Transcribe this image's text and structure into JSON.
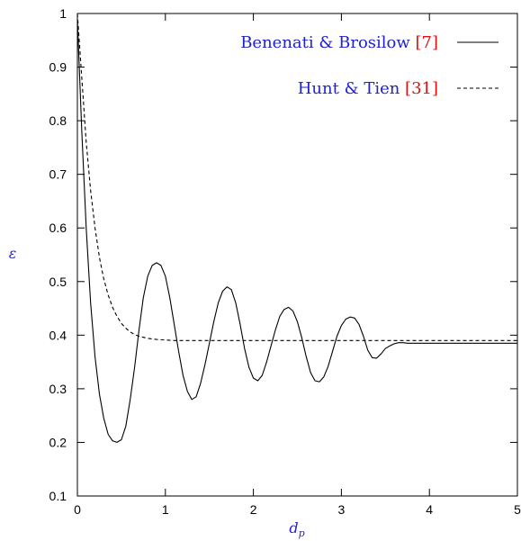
{
  "colors": {
    "axis_label": "#2222cc",
    "legend_text": "#2222cc",
    "citation": "#dd1111",
    "line": "#000000"
  },
  "chart_data": {
    "type": "line",
    "title": "",
    "xlabel": "d_p",
    "ylabel": "ε",
    "xlim": [
      0,
      5
    ],
    "ylim": [
      0.1,
      1
    ],
    "xticks": [
      "0",
      "1",
      "2",
      "3",
      "4",
      "5"
    ],
    "yticks": [
      "0.1",
      "0.2",
      "0.3",
      "0.4",
      "0.5",
      "0.6",
      "0.7",
      "0.8",
      "0.9",
      "1"
    ],
    "grid": false,
    "legend_position": "top-right",
    "series": [
      {
        "name": "Benenati & Brosilow",
        "citation": "[7]",
        "style": "solid",
        "x": [
          0,
          0.05,
          0.1,
          0.15,
          0.2,
          0.25,
          0.3,
          0.35,
          0.4,
          0.45,
          0.5,
          0.55,
          0.6,
          0.65,
          0.7,
          0.75,
          0.8,
          0.85,
          0.9,
          0.95,
          1.0,
          1.05,
          1.1,
          1.15,
          1.2,
          1.25,
          1.3,
          1.35,
          1.4,
          1.45,
          1.5,
          1.55,
          1.6,
          1.65,
          1.7,
          1.75,
          1.8,
          1.85,
          1.9,
          1.95,
          2.0,
          2.05,
          2.1,
          2.15,
          2.2,
          2.25,
          2.3,
          2.35,
          2.4,
          2.45,
          2.5,
          2.55,
          2.6,
          2.65,
          2.7,
          2.75,
          2.8,
          2.85,
          2.9,
          2.95,
          3.0,
          3.05,
          3.1,
          3.15,
          3.2,
          3.25,
          3.3,
          3.35,
          3.4,
          3.45,
          3.5,
          3.55,
          3.6,
          3.65,
          3.7,
          3.75,
          3.8,
          3.9,
          4.0,
          4.1,
          4.2,
          4.3,
          4.4,
          4.5,
          4.6,
          4.7,
          4.8,
          4.9,
          5.0
        ],
        "y": [
          0.99,
          0.78,
          0.6,
          0.46,
          0.36,
          0.29,
          0.245,
          0.215,
          0.203,
          0.2,
          0.205,
          0.23,
          0.28,
          0.34,
          0.41,
          0.47,
          0.51,
          0.53,
          0.535,
          0.53,
          0.51,
          0.47,
          0.42,
          0.37,
          0.325,
          0.295,
          0.28,
          0.285,
          0.31,
          0.345,
          0.385,
          0.425,
          0.46,
          0.482,
          0.49,
          0.485,
          0.46,
          0.42,
          0.375,
          0.34,
          0.32,
          0.315,
          0.325,
          0.35,
          0.38,
          0.41,
          0.435,
          0.448,
          0.452,
          0.445,
          0.425,
          0.395,
          0.36,
          0.33,
          0.315,
          0.313,
          0.322,
          0.342,
          0.37,
          0.398,
          0.418,
          0.43,
          0.434,
          0.432,
          0.42,
          0.398,
          0.372,
          0.358,
          0.357,
          0.365,
          0.375,
          0.38,
          0.384,
          0.386,
          0.386,
          0.385,
          0.385,
          0.385,
          0.385,
          0.385,
          0.385,
          0.385,
          0.385,
          0.385,
          0.385,
          0.385,
          0.385,
          0.385,
          0.385
        ]
      },
      {
        "name": "Hunt & Tien",
        "citation": "[31]",
        "style": "dashed",
        "x": [
          0,
          0.05,
          0.1,
          0.15,
          0.2,
          0.25,
          0.3,
          0.35,
          0.4,
          0.45,
          0.5,
          0.55,
          0.6,
          0.65,
          0.7,
          0.75,
          0.8,
          0.9,
          1.0,
          1.1,
          1.2,
          1.5,
          2.0,
          3.0,
          4.0,
          5.0
        ],
        "y": [
          1.0,
          0.88,
          0.76,
          0.67,
          0.6,
          0.545,
          0.505,
          0.475,
          0.452,
          0.435,
          0.422,
          0.413,
          0.406,
          0.401,
          0.398,
          0.396,
          0.394,
          0.392,
          0.391,
          0.39,
          0.39,
          0.39,
          0.39,
          0.39,
          0.39,
          0.39
        ]
      }
    ]
  }
}
